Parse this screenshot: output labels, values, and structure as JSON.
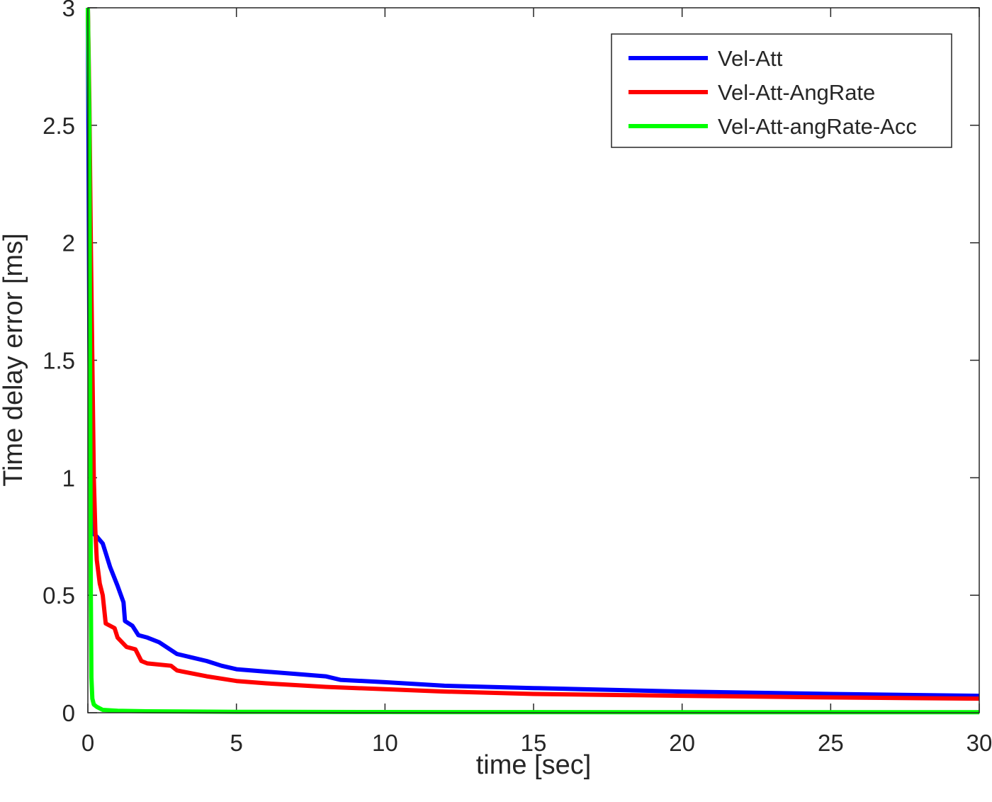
{
  "chart_data": {
    "type": "line",
    "title": "",
    "xlabel": "time [sec]",
    "ylabel": "Time delay error [ms]",
    "xlim": [
      0,
      30
    ],
    "ylim": [
      0,
      3
    ],
    "xticks": [
      0,
      5,
      10,
      15,
      20,
      25,
      30
    ],
    "yticks": [
      0,
      0.5,
      1,
      1.5,
      2,
      2.5,
      3
    ],
    "xtick_labels": [
      "0",
      "5",
      "10",
      "15",
      "20",
      "25",
      "30"
    ],
    "ytick_labels": [
      "0",
      "0.5",
      "1",
      "1.5",
      "2",
      "2.5",
      "3"
    ],
    "grid": false,
    "legend_position": "top-right",
    "series": [
      {
        "name": "Vel-Att",
        "color": "#0000ff",
        "x": [
          0,
          0.05,
          0.1,
          0.2,
          0.3,
          0.5,
          0.6,
          0.75,
          1.0,
          1.2,
          1.25,
          1.5,
          1.7,
          2.0,
          2.4,
          3.0,
          3.5,
          4.0,
          4.5,
          5.0,
          6.0,
          7.0,
          8.0,
          8.5,
          10.0,
          12.0,
          15.0,
          20.0,
          25.0,
          30.0
        ],
        "y": [
          3.0,
          1.6,
          0.9,
          0.76,
          0.75,
          0.72,
          0.68,
          0.62,
          0.54,
          0.47,
          0.39,
          0.37,
          0.33,
          0.32,
          0.3,
          0.25,
          0.235,
          0.22,
          0.2,
          0.185,
          0.175,
          0.165,
          0.155,
          0.14,
          0.13,
          0.115,
          0.105,
          0.09,
          0.08,
          0.072
        ]
      },
      {
        "name": "Vel-Att-AngRate",
        "color": "#ff0000",
        "x": [
          0,
          0.05,
          0.1,
          0.2,
          0.25,
          0.3,
          0.4,
          0.5,
          0.6,
          0.9,
          1.0,
          1.3,
          1.6,
          1.8,
          2.0,
          2.8,
          3.0,
          4.0,
          5.0,
          6.0,
          8.0,
          10.0,
          12.0,
          15.0,
          20.0,
          25.0,
          30.0
        ],
        "y": [
          3.0,
          2.6,
          2.0,
          1.0,
          0.78,
          0.65,
          0.55,
          0.5,
          0.38,
          0.36,
          0.32,
          0.28,
          0.27,
          0.22,
          0.21,
          0.2,
          0.18,
          0.155,
          0.135,
          0.125,
          0.11,
          0.1,
          0.09,
          0.08,
          0.072,
          0.065,
          0.06
        ]
      },
      {
        "name": "Vel-Att-angRate-Acc",
        "color": "#00ff00",
        "x": [
          0,
          0.05,
          0.08,
          0.1,
          0.12,
          0.15,
          0.2,
          0.3,
          0.5,
          1.0,
          2.0,
          5.0,
          10.0,
          20.0,
          30.0
        ],
        "y": [
          3.0,
          2.5,
          1.2,
          0.5,
          0.15,
          0.06,
          0.035,
          0.025,
          0.012,
          0.008,
          0.006,
          0.004,
          0.003,
          0.002,
          0.002
        ]
      }
    ]
  }
}
